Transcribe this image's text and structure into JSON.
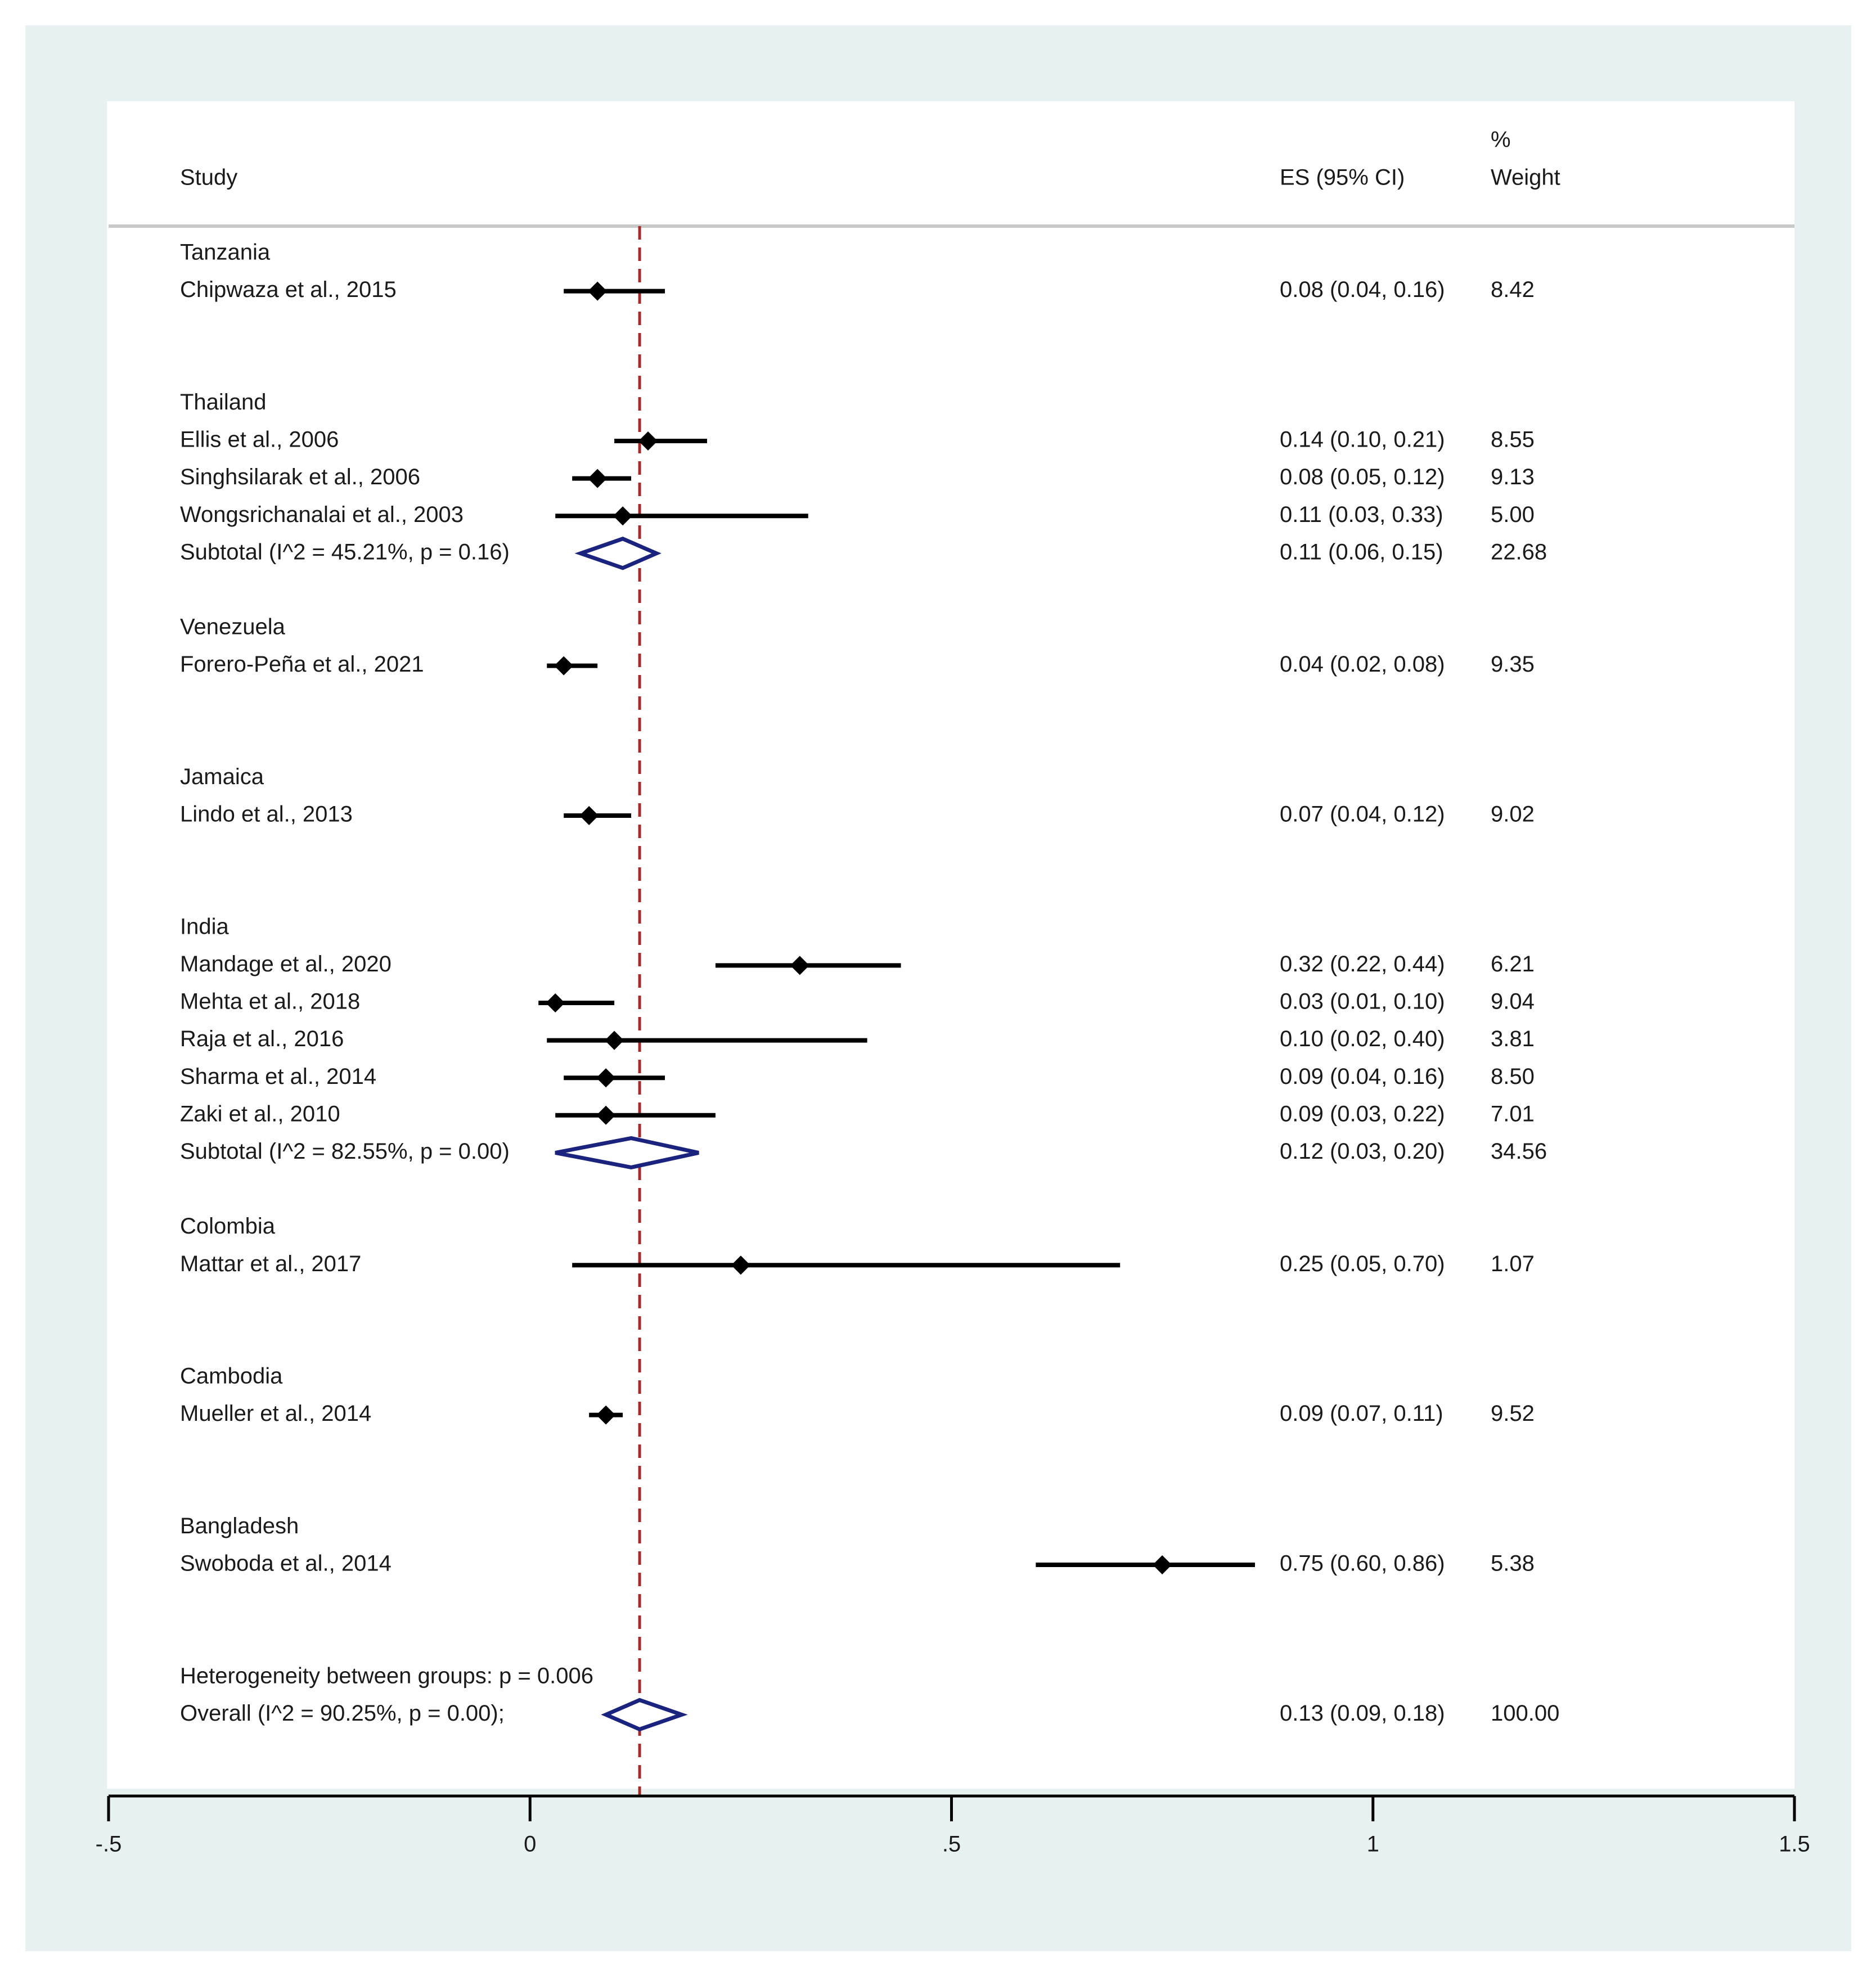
{
  "chart_data": {
    "type": "forest",
    "headers": {
      "study": "Study",
      "es": "ES (95% CI)",
      "weight_line1": "%",
      "weight_line2": "Weight"
    },
    "groups": [
      {
        "name": "Tanzania",
        "studies": [
          {
            "label": "Chipwaza et al., 2015",
            "es": 0.08,
            "lo": 0.04,
            "hi": 0.16,
            "ci_text": "0.08 (0.04, 0.16)",
            "weight": "8.42"
          }
        ]
      },
      {
        "name": "Thailand",
        "studies": [
          {
            "label": "Ellis et al., 2006",
            "es": 0.14,
            "lo": 0.1,
            "hi": 0.21,
            "ci_text": "0.14 (0.10, 0.21)",
            "weight": "8.55"
          },
          {
            "label": "Singhsilarak et al., 2006",
            "es": 0.08,
            "lo": 0.05,
            "hi": 0.12,
            "ci_text": "0.08 (0.05, 0.12)",
            "weight": "9.13"
          },
          {
            "label": "Wongsrichanalai et al., 2003",
            "es": 0.11,
            "lo": 0.03,
            "hi": 0.33,
            "ci_text": "0.11 (0.03, 0.33)",
            "weight": "5.00"
          }
        ],
        "subtotal": {
          "label": "Subtotal  (I^2 = 45.21%, p = 0.16)",
          "es": 0.11,
          "lo": 0.06,
          "hi": 0.15,
          "ci_text": "0.11 (0.06, 0.15)",
          "weight": "22.68"
        }
      },
      {
        "name": "Venezuela",
        "studies": [
          {
            "label": "Forero-Peña et al., 2021",
            "es": 0.04,
            "lo": 0.02,
            "hi": 0.08,
            "ci_text": "0.04 (0.02, 0.08)",
            "weight": "9.35"
          }
        ]
      },
      {
        "name": "Jamaica",
        "studies": [
          {
            "label": "Lindo et al., 2013",
            "es": 0.07,
            "lo": 0.04,
            "hi": 0.12,
            "ci_text": "0.07 (0.04, 0.12)",
            "weight": "9.02"
          }
        ]
      },
      {
        "name": "India",
        "studies": [
          {
            "label": "Mandage et al., 2020",
            "es": 0.32,
            "lo": 0.22,
            "hi": 0.44,
            "ci_text": "0.32 (0.22, 0.44)",
            "weight": "6.21"
          },
          {
            "label": "Mehta et al., 2018",
            "es": 0.03,
            "lo": 0.01,
            "hi": 0.1,
            "ci_text": "0.03 (0.01, 0.10)",
            "weight": "9.04"
          },
          {
            "label": "Raja et al., 2016",
            "es": 0.1,
            "lo": 0.02,
            "hi": 0.4,
            "ci_text": "0.10 (0.02, 0.40)",
            "weight": "3.81"
          },
          {
            "label": "Sharma et al., 2014",
            "es": 0.09,
            "lo": 0.04,
            "hi": 0.16,
            "ci_text": "0.09 (0.04, 0.16)",
            "weight": "8.50"
          },
          {
            "label": "Zaki et al., 2010",
            "es": 0.09,
            "lo": 0.03,
            "hi": 0.22,
            "ci_text": "0.09 (0.03, 0.22)",
            "weight": "7.01"
          }
        ],
        "subtotal": {
          "label": "Subtotal  (I^2 = 82.55%, p = 0.00)",
          "es": 0.12,
          "lo": 0.03,
          "hi": 0.2,
          "ci_text": "0.12 (0.03, 0.20)",
          "weight": "34.56"
        }
      },
      {
        "name": "Colombia",
        "studies": [
          {
            "label": "Mattar et al., 2017",
            "es": 0.25,
            "lo": 0.05,
            "hi": 0.7,
            "ci_text": "0.25 (0.05, 0.70)",
            "weight": "1.07"
          }
        ]
      },
      {
        "name": "Cambodia",
        "studies": [
          {
            "label": "Mueller et al., 2014",
            "es": 0.09,
            "lo": 0.07,
            "hi": 0.11,
            "ci_text": "0.09 (0.07, 0.11)",
            "weight": "9.52"
          }
        ]
      },
      {
        "name": "Bangladesh",
        "studies": [
          {
            "label": "Swoboda et al., 2014",
            "es": 0.75,
            "lo": 0.6,
            "hi": 0.86,
            "ci_text": "0.75 (0.60, 0.86)",
            "weight": "5.38"
          }
        ]
      }
    ],
    "heterogeneity": "Heterogeneity between groups: p = 0.006",
    "overall": {
      "label": "Overall  (I^2 = 90.25%, p = 0.00);",
      "es": 0.13,
      "lo": 0.09,
      "hi": 0.18,
      "ci_text": "0.13 (0.09, 0.18)",
      "weight": "100.00"
    },
    "x_axis": {
      "range": [
        -0.5,
        1.5
      ],
      "ticks": [
        -0.5,
        0,
        0.5,
        1,
        1.5
      ],
      "tick_labels": [
        "-.5",
        "0",
        ".5",
        "1",
        "1.5"
      ]
    },
    "reference_line": 0.13,
    "colors": {
      "background_outer": "#e8f1f2",
      "panel": "#ffffff",
      "marker": "#000000",
      "diamond": "#1a237e",
      "reference_line": "#a52a2a",
      "header_rule": "#c8c8c8"
    }
  }
}
